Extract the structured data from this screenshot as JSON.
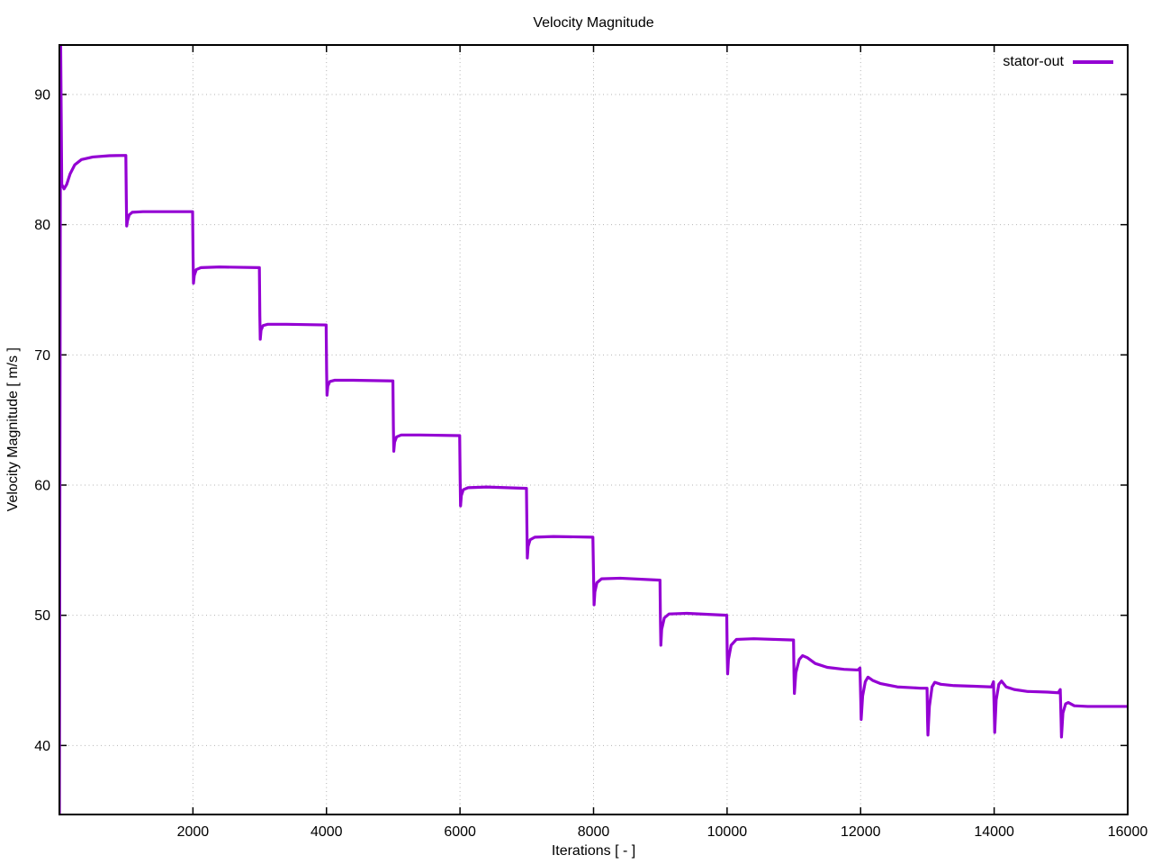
{
  "chart_data": {
    "type": "line",
    "title": "Velocity Magnitude",
    "xlabel": "Iterations [ - ]",
    "ylabel": "Velocity Magnitude [ m/s ]",
    "xlim": [
      0,
      16000
    ],
    "ylim": [
      34.7,
      93.8
    ],
    "x_ticks": [
      2000,
      4000,
      6000,
      8000,
      10000,
      12000,
      14000,
      16000
    ],
    "y_ticks": [
      40,
      50,
      60,
      70,
      80,
      90
    ],
    "grid": "dotted-major",
    "legend_position": "top-right-inside",
    "series": [
      {
        "name": "stator-out",
        "color": "#9400d3",
        "points": [
          [
            0,
            34.5
          ],
          [
            18,
            94.5
          ],
          [
            35,
            83.1
          ],
          [
            70,
            82.75
          ],
          [
            110,
            83.1
          ],
          [
            160,
            83.9
          ],
          [
            230,
            84.6
          ],
          [
            330,
            85.0
          ],
          [
            500,
            85.2
          ],
          [
            750,
            85.3
          ],
          [
            995,
            85.32
          ],
          [
            1002,
            82.0
          ],
          [
            1008,
            79.9
          ],
          [
            1020,
            80.3
          ],
          [
            1045,
            80.75
          ],
          [
            1090,
            80.95
          ],
          [
            1250,
            81.0
          ],
          [
            1995,
            81.0
          ],
          [
            2002,
            77.5
          ],
          [
            2008,
            75.5
          ],
          [
            2020,
            76.1
          ],
          [
            2050,
            76.55
          ],
          [
            2120,
            76.7
          ],
          [
            2400,
            76.75
          ],
          [
            2995,
            76.7
          ],
          [
            3002,
            73.0
          ],
          [
            3008,
            71.2
          ],
          [
            3020,
            71.9
          ],
          [
            3050,
            72.25
          ],
          [
            3120,
            72.35
          ],
          [
            3400,
            72.35
          ],
          [
            3995,
            72.3
          ],
          [
            4002,
            68.8
          ],
          [
            4008,
            66.9
          ],
          [
            4020,
            67.6
          ],
          [
            4050,
            67.95
          ],
          [
            4120,
            68.05
          ],
          [
            4400,
            68.05
          ],
          [
            4995,
            68.0
          ],
          [
            5002,
            64.5
          ],
          [
            5008,
            62.6
          ],
          [
            5020,
            63.3
          ],
          [
            5050,
            63.7
          ],
          [
            5120,
            63.85
          ],
          [
            5400,
            63.85
          ],
          [
            5995,
            63.8
          ],
          [
            6002,
            60.5
          ],
          [
            6008,
            58.4
          ],
          [
            6020,
            59.2
          ],
          [
            6050,
            59.65
          ],
          [
            6120,
            59.8
          ],
          [
            6400,
            59.85
          ],
          [
            6995,
            59.75
          ],
          [
            7002,
            56.8
          ],
          [
            7008,
            54.4
          ],
          [
            7020,
            55.3
          ],
          [
            7050,
            55.8
          ],
          [
            7120,
            56.0
          ],
          [
            7400,
            56.05
          ],
          [
            7990,
            56.0
          ],
          [
            8002,
            52.5
          ],
          [
            8008,
            50.8
          ],
          [
            8020,
            51.8
          ],
          [
            8050,
            52.5
          ],
          [
            8120,
            52.8
          ],
          [
            8400,
            52.85
          ],
          [
            8995,
            52.7
          ],
          [
            9002,
            49.5
          ],
          [
            9008,
            47.7
          ],
          [
            9020,
            48.9
          ],
          [
            9060,
            49.8
          ],
          [
            9130,
            50.1
          ],
          [
            9400,
            50.15
          ],
          [
            9995,
            50.0
          ],
          [
            10002,
            47.0
          ],
          [
            10008,
            45.5
          ],
          [
            10020,
            46.6
          ],
          [
            10060,
            47.7
          ],
          [
            10140,
            48.15
          ],
          [
            10400,
            48.2
          ],
          [
            10995,
            48.1
          ],
          [
            11002,
            45.5
          ],
          [
            11008,
            44.0
          ],
          [
            11030,
            45.6
          ],
          [
            11080,
            46.6
          ],
          [
            11130,
            46.9
          ],
          [
            11200,
            46.75
          ],
          [
            11320,
            46.3
          ],
          [
            11500,
            46.0
          ],
          [
            11750,
            45.85
          ],
          [
            11960,
            45.8
          ],
          [
            11990,
            45.95
          ],
          [
            12002,
            43.5
          ],
          [
            12008,
            42.0
          ],
          [
            12030,
            43.8
          ],
          [
            12070,
            44.9
          ],
          [
            12110,
            45.25
          ],
          [
            12180,
            45.0
          ],
          [
            12300,
            44.75
          ],
          [
            12550,
            44.5
          ],
          [
            12900,
            44.4
          ],
          [
            12995,
            44.4
          ],
          [
            13002,
            42.0
          ],
          [
            13008,
            40.8
          ],
          [
            13030,
            43.0
          ],
          [
            13070,
            44.5
          ],
          [
            13110,
            44.85
          ],
          [
            13200,
            44.7
          ],
          [
            13400,
            44.6
          ],
          [
            13700,
            44.55
          ],
          [
            13960,
            44.5
          ],
          [
            13990,
            44.9
          ],
          [
            14002,
            42.5
          ],
          [
            14008,
            41.0
          ],
          [
            14030,
            43.5
          ],
          [
            14070,
            44.7
          ],
          [
            14110,
            44.95
          ],
          [
            14180,
            44.5
          ],
          [
            14300,
            44.3
          ],
          [
            14500,
            44.15
          ],
          [
            14800,
            44.1
          ],
          [
            14960,
            44.05
          ],
          [
            14990,
            44.3
          ],
          [
            15002,
            42.0
          ],
          [
            15008,
            40.65
          ],
          [
            15030,
            42.5
          ],
          [
            15070,
            43.2
          ],
          [
            15110,
            43.3
          ],
          [
            15200,
            43.05
          ],
          [
            15400,
            43.0
          ],
          [
            16000,
            43.0
          ]
        ]
      }
    ],
    "style": {
      "line_width": 3.2,
      "grid_color": "#b3b3b3",
      "border_color": "#000000",
      "text_color": "#000000",
      "background": "#ffffff"
    }
  }
}
